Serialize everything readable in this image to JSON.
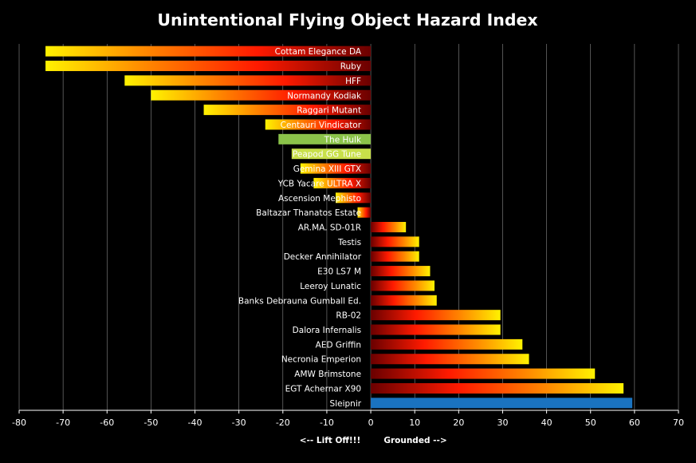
{
  "chart_data": {
    "type": "bar",
    "orientation": "horizontal",
    "title": "Unintentional Flying Object Hazard Index",
    "xlim": [
      -80,
      70
    ],
    "xticks": [
      -80,
      -70,
      -60,
      -50,
      -40,
      -30,
      -20,
      -10,
      0,
      10,
      20,
      30,
      40,
      50,
      60,
      70
    ],
    "grid": true,
    "axis_captions": {
      "negative": "<-- Lift Off!!!",
      "positive": "Grounded -->"
    },
    "styles": {
      "fire_dark": "#6a0000",
      "fire_red": "#ff1a00",
      "fire_orange": "#ff8a00",
      "fire_yellow": "#fff200",
      "green": "#8bc34a",
      "yellowgreen": "#c8e04a",
      "blue": "#1a73c0"
    },
    "categories": [
      "Cottam Elegance DA",
      "Ruby",
      "HFF",
      "Normandy Kodiak",
      "Raggari Mutant",
      "Centauri Vindicator",
      "The Hulk",
      "Peapod GG Tune",
      "Gemina XIII GTX",
      "YCB Yacare ULTRA X",
      "Ascension Mephisto",
      "Baltazar Thanatos Estate",
      "AR.MA. SD-01R",
      "Testis",
      "Decker Annihilator",
      "E30 LS7 M",
      "Leeroy Lunatic",
      "Banks Debrauna Gumball Ed.",
      "RB-02",
      "Dalora Infernalis",
      "AED Griffin",
      "Necronia Emperion",
      "AMW Brimstone",
      "EGT Achernar X90",
      "Sleipnir"
    ],
    "values": [
      -74,
      -74,
      -56,
      -50,
      -38,
      -24,
      -21,
      -18,
      -16,
      -13,
      -8,
      -3,
      8,
      11,
      11,
      13.5,
      14.5,
      15,
      29.5,
      29.5,
      34.5,
      36,
      51,
      57.5,
      59.5
    ],
    "bar_styles": [
      "fire",
      "fire",
      "fire",
      "fire",
      "fire",
      "fire",
      "green",
      "yellowgreen",
      "fire",
      "fire",
      "fire",
      "fire",
      "fire",
      "fire",
      "fire",
      "fire",
      "fire",
      "fire",
      "fire",
      "fire",
      "fire",
      "fire",
      "fire",
      "fire",
      "blue"
    ]
  }
}
